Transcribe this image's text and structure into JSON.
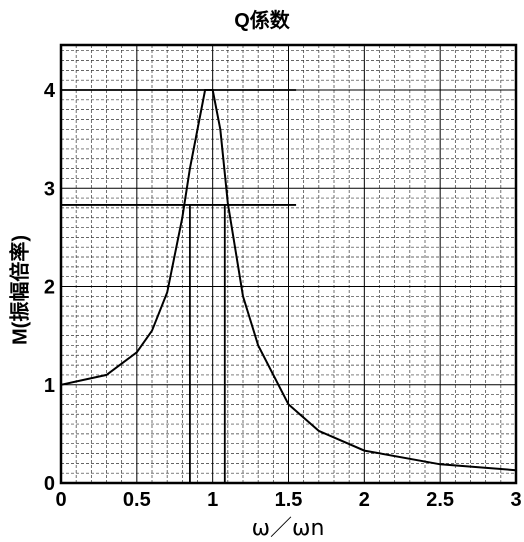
{
  "chart_data": {
    "type": "line",
    "title": "Q係数",
    "xlabel": "ω／ωn",
    "ylabel": "M(振幅倍率)",
    "xlim": [
      0,
      3
    ],
    "ylim": [
      0,
      4.5
    ],
    "x_ticks": [
      "0",
      "0.5",
      "1",
      "1.5",
      "2",
      "2.5",
      "3"
    ],
    "y_ticks": [
      "0",
      "1",
      "2",
      "3",
      "4"
    ],
    "grid": true,
    "series": [
      {
        "x": [
          0,
          0.3,
          0.5,
          0.6,
          0.7,
          0.8,
          0.85,
          0.9,
          0.95,
          1.0,
          1.05,
          1.1,
          1.2,
          1.3,
          1.5,
          1.7,
          2.0,
          2.5,
          3.0
        ],
        "y": [
          1.0,
          1.1,
          1.33,
          1.55,
          1.94,
          2.7,
          3.2,
          3.6,
          4.0,
          4.0,
          3.6,
          2.85,
          1.9,
          1.4,
          0.8,
          0.53,
          0.33,
          0.19,
          0.13
        ]
      }
    ],
    "reference_lines": [
      {
        "type": "hline",
        "y": 4.0,
        "x_end": 1.55
      },
      {
        "type": "hline",
        "y": 2.83,
        "x_end": 1.55
      },
      {
        "type": "vline",
        "x": 0.85,
        "y_end": 2.83
      },
      {
        "type": "vline",
        "x": 1.08,
        "y_end": 2.83
      }
    ]
  }
}
